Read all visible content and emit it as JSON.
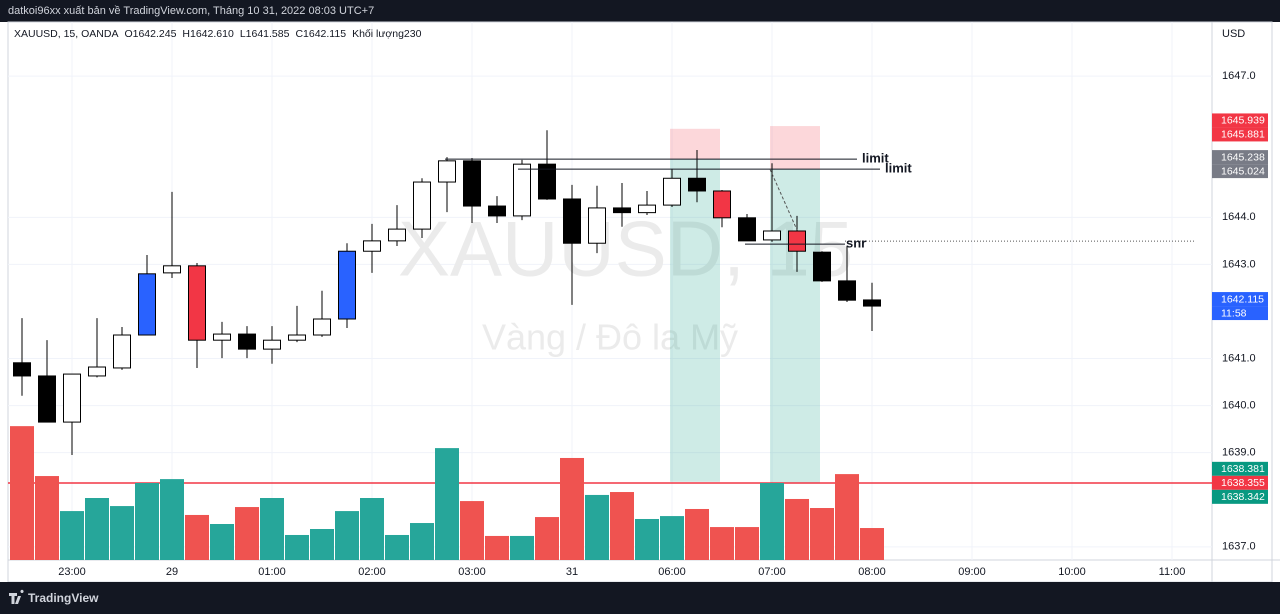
{
  "header": {
    "publisher": "datkoi96xx xuất bản về TradingView.com, Tháng 10 31, 2022 08:03 UTC+7"
  },
  "chart_data": {
    "type": "candlestick",
    "legend": [
      "XAUUSD, 15, OANDA",
      "O1642.245",
      "H1642.610",
      "L1641.585",
      "C1642.115",
      "Khối lượng230"
    ],
    "watermark": "XAUUSD, 15",
    "watermark_subtitle": "Vàng / Đô la Mỹ",
    "currency": "USD",
    "open": [
      1640.91,
      1640.63,
      1639.65,
      1640.63,
      1640.8,
      1641.5,
      1642.82,
      1642.97,
      1641.39,
      1641.52,
      1641.2,
      1641.39,
      1641.5,
      1641.84,
      1643.28,
      1643.5,
      1643.75,
      1644.75,
      1645.2,
      1644.24,
      1644.03,
      1645.13,
      1644.39,
      1643.45,
      1644.2,
      1644.1,
      1644.26,
      1644.83,
      1644.56,
      1643.99,
      1643.52,
      1643.71,
      1643.26,
      1642.65,
      1642.245
    ],
    "high": [
      1641.86,
      1641.39,
      1640.67,
      1641.86,
      1641.67,
      1643.2,
      1644.54,
      1643.03,
      1641.78,
      1641.69,
      1641.69,
      1642.12,
      1642.44,
      1643.45,
      1643.86,
      1644.26,
      1644.83,
      1645.28,
      1645.26,
      1644.45,
      1645.22,
      1645.85,
      1644.69,
      1644.67,
      1644.73,
      1644.56,
      1645.03,
      1645.43,
      1644.58,
      1644.07,
      1645.15,
      1644.03,
      1643.28,
      1643.39,
      1642.61
    ],
    "low": [
      1640.21,
      1639.65,
      1638.95,
      1640.6,
      1640.76,
      1641.5,
      1642.71,
      1640.8,
      1641.01,
      1641.01,
      1640.89,
      1641.35,
      1641.46,
      1641.65,
      1642.82,
      1643.39,
      1643.56,
      1644.11,
      1643.88,
      1643.88,
      1643.94,
      1644.37,
      1642.14,
      1643.24,
      1643.8,
      1644.05,
      1644.22,
      1644.32,
      1643.79,
      1643.5,
      1643.48,
      1642.84,
      1642.63,
      1642.2,
      1641.585
    ],
    "close": [
      1640.63,
      1639.65,
      1640.67,
      1640.82,
      1641.5,
      1642.8,
      1642.97,
      1641.39,
      1641.52,
      1641.2,
      1641.39,
      1641.5,
      1641.84,
      1643.28,
      1643.5,
      1643.75,
      1644.75,
      1645.2,
      1644.24,
      1644.03,
      1645.13,
      1644.39,
      1643.45,
      1644.2,
      1644.1,
      1644.26,
      1644.83,
      1644.56,
      1643.99,
      1643.5,
      1643.71,
      1643.28,
      1642.65,
      1642.24,
      1642.115
    ],
    "volume": [
      963,
      604,
      352,
      446,
      388,
      554,
      582,
      324,
      259,
      381,
      446,
      180,
      223,
      352,
      446,
      180,
      266,
      805,
      424,
      173,
      173,
      309,
      734,
      468,
      489,
      295,
      316,
      367,
      237,
      237,
      554,
      439,
      374,
      618,
      230
    ],
    "candle_colors": [
      "#000000",
      "#000000",
      "#ffffff",
      "#ffffff",
      "#ffffff",
      "#2962ff",
      "#ffffff",
      "#f23645",
      "#ffffff",
      "#000000",
      "#ffffff",
      "#ffffff",
      "#ffffff",
      "#2962ff",
      "#ffffff",
      "#ffffff",
      "#ffffff",
      "#ffffff",
      "#000000",
      "#000000",
      "#ffffff",
      "#000000",
      "#000000",
      "#ffffff",
      "#000000",
      "#ffffff",
      "#ffffff",
      "#000000",
      "#f23645",
      "#000000",
      "#ffffff",
      "#f23645",
      "#000000",
      "#000000",
      "#000000"
    ],
    "volume_colors": {
      "up": "#26a69a",
      "down": "#ef5350"
    },
    "xlim": [
      -0.48,
      47.6
    ],
    "xticks": [
      {
        "value": 2,
        "label": "23:00"
      },
      {
        "value": 6,
        "label": "29"
      },
      {
        "value": 10,
        "label": "01:00"
      },
      {
        "value": 14,
        "label": "02:00"
      },
      {
        "value": 18,
        "label": "03:00"
      },
      {
        "value": 22,
        "label": "31"
      },
      {
        "value": 26,
        "label": "06:00"
      },
      {
        "value": 30,
        "label": "07:00"
      },
      {
        "value": 34,
        "label": "08:00"
      },
      {
        "value": 38,
        "label": "09:00"
      },
      {
        "value": 42,
        "label": "10:00"
      },
      {
        "value": 46,
        "label": "11:00"
      }
    ],
    "ylim": [
      1636.72,
      1648.15
    ],
    "yticks": [
      {
        "value": 1637,
        "label": "1637.0"
      },
      {
        "value": 1639,
        "label": "1639.0"
      },
      {
        "value": 1640,
        "label": "1640.0"
      },
      {
        "value": 1641,
        "label": "1641.0"
      },
      {
        "value": 1643,
        "label": "1643.0"
      },
      {
        "value": 1644,
        "label": "1644.0"
      },
      {
        "value": 1647,
        "label": "1647.0"
      }
    ],
    "grid": true,
    "positions": [
      {
        "label": "limit",
        "stop": 1645.881,
        "entry": 1645.238,
        "target": 1638.381
      },
      {
        "label": "limit",
        "stop": 1645.939,
        "entry": 1645.024,
        "target": 1638.342
      }
    ],
    "alert_line": 1638.355,
    "snr": {
      "label": "snr",
      "value": 1643.43
    },
    "countdown": "11:58"
  },
  "footer": {
    "brand": "TradingView"
  }
}
